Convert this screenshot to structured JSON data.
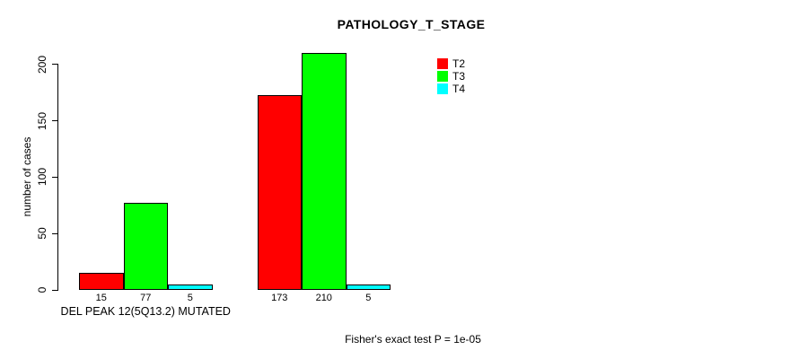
{
  "chart_data": {
    "type": "bar",
    "title": "PATHOLOGY_T_STAGE",
    "xlabel": "",
    "ylabel": "number of cases",
    "ylim": [
      0,
      210
    ],
    "yticks": [
      0,
      50,
      100,
      150,
      200
    ],
    "grid": false,
    "legend_position": "top-right",
    "categories": [
      "DEL PEAK 12(5Q13.2) MUTATED",
      ""
    ],
    "series": [
      {
        "name": "T2",
        "color": "#ff0000",
        "values": [
          15,
          173
        ]
      },
      {
        "name": "T3",
        "color": "#00ff00",
        "values": [
          77,
          210
        ]
      },
      {
        "name": "T4",
        "color": "#00ffff",
        "values": [
          5,
          5
        ]
      }
    ],
    "bar_border_color": "#000000",
    "annotation": "Fisher's exact test P = 1e-05"
  }
}
